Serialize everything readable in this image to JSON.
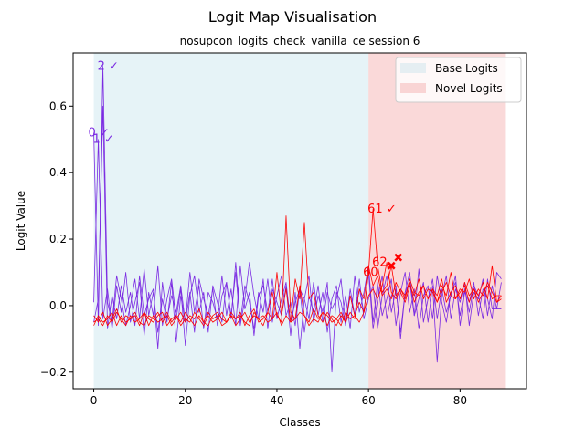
{
  "chart_data": {
    "type": "line",
    "title": "Logit Map Visualisation",
    "subtitle": "nosupcon_logits_check_vanilla_ce session 6",
    "xlabel": "Classes",
    "ylabel": "Logit Value",
    "xlim": [
      -4.5,
      94.5
    ],
    "ylim": [
      -0.25,
      0.76
    ],
    "xticks": [
      0,
      20,
      40,
      60,
      80
    ],
    "yticks": [
      -0.2,
      0.0,
      0.2,
      0.4,
      0.6
    ],
    "ytick_labels": [
      "−0.2",
      "0.0",
      "0.2",
      "0.4",
      "0.6"
    ],
    "grid": false,
    "legend_position": "top-right",
    "regions": [
      {
        "name": "Base Logits",
        "x_start": 0,
        "x_end": 60,
        "color": "#add8e6"
      },
      {
        "name": "Novel Logits",
        "x_start": 60,
        "x_end": 90,
        "color": "#f08080"
      }
    ],
    "colors": {
      "base_series": "#7b2be2",
      "novel_series": "#ff0000"
    },
    "annotations": [
      {
        "text": "2 ✓",
        "x": 2,
        "y": 0.72,
        "color": "#7b2be2"
      },
      {
        "text": "0 ✓",
        "x": 0,
        "y": 0.52,
        "color": "#7b2be2"
      },
      {
        "text": "1 ✓",
        "x": 1,
        "y": 0.5,
        "color": "#7b2be2"
      },
      {
        "text": "61 ✓",
        "x": 61,
        "y": 0.29,
        "color": "#ff0000"
      },
      {
        "text": "62",
        "x": 62,
        "y": 0.13,
        "color": "#ff0000"
      },
      {
        "text": "60",
        "x": 60,
        "y": 0.1,
        "color": "#ff0000"
      }
    ],
    "markers": [
      {
        "x": 65,
        "y": 0.12,
        "symbol": "x",
        "color": "#ff0000"
      },
      {
        "x": 66.5,
        "y": 0.145,
        "symbol": "x",
        "color": "#ff0000"
      }
    ],
    "series": [
      {
        "group": "base",
        "color": "#7b2be2",
        "values": [
          0.52,
          -0.06,
          0.72,
          0.01,
          -0.05,
          0.09,
          0.02,
          -0.06,
          0.0,
          0.08,
          -0.04,
          0.11,
          -0.03,
          0.04,
          -0.08,
          0.02,
          -0.05,
          0.07,
          -0.11,
          0.03,
          -0.05,
          0.1,
          -0.02,
          0.06,
          -0.07,
          0.04,
          0.01,
          -0.04,
          0.09,
          -0.03,
          0.05,
          -0.06,
          0.12,
          -0.01,
          0.04,
          -0.09,
          0.03,
          0.06,
          -0.02,
          0.08,
          -0.04,
          0.02,
          0.07,
          -0.05,
          0.01,
          0.05,
          -0.08,
          0.03,
          -0.02,
          0.06,
          -0.05,
          0.04,
          -0.01,
          0.02,
          0.08,
          -0.06,
          0.03,
          -0.03,
          0.05,
          -0.02,
          0.1,
          -0.07,
          0.02,
          0.09,
          -0.04,
          0.03,
          0.06,
          -0.1,
          0.04,
          0.07,
          -0.03,
          0.11,
          -0.05,
          0.02,
          0.08,
          -0.04,
          0.05,
          -0.02,
          0.03,
          0.09,
          -0.06,
          0.04,
          0.01,
          0.07,
          -0.03,
          0.05,
          0.02,
          -0.04,
          0.1,
          0.08
        ]
      },
      {
        "group": "base",
        "color": "#7b2be2",
        "values": [
          0.01,
          0.5,
          -0.04,
          0.05,
          -0.07,
          0.06,
          -0.02,
          0.1,
          -0.05,
          0.01,
          0.07,
          -0.09,
          0.04,
          -0.03,
          0.12,
          -0.06,
          0.02,
          0.08,
          -0.04,
          0.05,
          -0.12,
          0.03,
          0.09,
          -0.02,
          0.04,
          -0.08,
          0.06,
          0.01,
          -0.05,
          0.07,
          -0.03,
          0.1,
          -0.06,
          0.02,
          0.13,
          0.03,
          -0.04,
          0.08,
          -0.07,
          0.05,
          0.01,
          -0.03,
          0.06,
          -0.09,
          0.04,
          -0.13,
          0.02,
          0.09,
          -0.05,
          0.03,
          -0.02,
          0.07,
          -0.2,
          0.04,
          0.01,
          -0.06,
          0.05,
          -0.03,
          0.08,
          -0.04,
          0.02,
          0.06,
          -0.07,
          0.03,
          0.09,
          -0.02,
          0.05,
          -0.08,
          0.04,
          0.1,
          -0.03,
          0.02,
          0.07,
          -0.05,
          0.06,
          -0.17,
          0.03,
          0.09,
          -0.04,
          0.05,
          0.01,
          0.07,
          -0.06,
          0.04,
          0.02,
          0.08,
          -0.03,
          0.06,
          -0.01,
          0.07
        ]
      },
      {
        "group": "base",
        "color": "#7b2be2",
        "values": [
          -0.05,
          0.02,
          0.6,
          -0.07,
          0.03,
          -0.04,
          0.06,
          -0.02,
          0.04,
          -0.06,
          0.09,
          -0.03,
          0.02,
          0.05,
          -0.13,
          0.07,
          -0.04,
          0.03,
          -0.02,
          0.06,
          -0.05,
          0.04,
          -0.08,
          0.08,
          0.02,
          -0.03,
          0.05,
          -0.06,
          0.03,
          0.07,
          -0.04,
          0.13,
          -0.05,
          0.06,
          0.01,
          -0.07,
          0.04,
          -0.02,
          0.08,
          -0.05,
          0.03,
          0.09,
          -0.03,
          0.01,
          -0.06,
          0.05,
          0.02,
          -0.04,
          0.07,
          -0.03,
          0.04,
          -0.08,
          0.02,
          0.06,
          -0.05,
          0.03,
          -0.07,
          0.09,
          -0.02,
          0.04,
          0.12,
          -0.05,
          0.07,
          -0.03,
          0.02,
          0.08,
          -0.06,
          0.04,
          0.1,
          -0.02,
          0.05,
          -0.07,
          0.03,
          0.06,
          -0.04,
          0.09,
          0.01,
          -0.05,
          0.04,
          0.07,
          -0.03,
          0.05,
          -0.02,
          0.06,
          0.03,
          -0.04,
          0.08,
          -0.01,
          -0.01,
          -0.01
        ]
      },
      {
        "group": "novel",
        "color": "#ff0000",
        "values": [
          -0.03,
          -0.05,
          -0.02,
          -0.06,
          -0.04,
          -0.01,
          -0.05,
          -0.03,
          -0.04,
          -0.02,
          -0.05,
          -0.06,
          -0.03,
          -0.04,
          -0.02,
          -0.05,
          -0.03,
          -0.06,
          -0.04,
          -0.02,
          -0.05,
          -0.03,
          -0.04,
          -0.01,
          -0.05,
          -0.06,
          -0.03,
          -0.02,
          -0.04,
          -0.05,
          -0.03,
          -0.04,
          -0.02,
          -0.06,
          -0.03,
          -0.01,
          -0.05,
          -0.04,
          -0.02,
          0.04,
          -0.03,
          -0.05,
          0.27,
          -0.02,
          -0.04,
          0.06,
          -0.03,
          -0.05,
          -0.01,
          -0.04,
          -0.02,
          -0.06,
          -0.03,
          -0.04,
          -0.02,
          -0.05,
          0.03,
          -0.03,
          0.01,
          -0.02,
          0.1,
          0.29,
          0.12,
          0.04,
          0.06,
          0.12,
          0.03,
          0.05,
          0.02,
          0.08,
          0.04,
          0.03,
          0.06,
          0.02,
          0.05,
          0.01,
          0.04,
          0.07,
          0.03,
          0.02,
          0.05,
          0.04,
          0.08,
          0.02,
          0.05,
          0.03,
          0.07,
          0.04,
          0.01,
          0.03
        ]
      },
      {
        "group": "novel",
        "color": "#ff0000",
        "values": [
          -0.05,
          -0.04,
          -0.06,
          -0.03,
          -0.05,
          -0.02,
          -0.04,
          -0.06,
          -0.03,
          -0.05,
          -0.04,
          -0.02,
          -0.06,
          -0.03,
          -0.05,
          -0.04,
          -0.02,
          -0.05,
          -0.03,
          -0.06,
          -0.04,
          -0.05,
          -0.02,
          -0.04,
          -0.06,
          -0.03,
          -0.05,
          -0.04,
          -0.02,
          -0.05,
          -0.03,
          -0.06,
          -0.04,
          -0.02,
          -0.05,
          -0.03,
          -0.04,
          -0.06,
          -0.02,
          -0.04,
          0.1,
          -0.03,
          0.05,
          -0.05,
          0.08,
          0.02,
          0.25,
          0.02,
          0.04,
          -0.03,
          -0.05,
          -0.02,
          -0.04,
          -0.06,
          -0.03,
          -0.05,
          -0.02,
          -0.04,
          0.05,
          0.02,
          0.12,
          0.06,
          0.09,
          0.03,
          0.05,
          0.02,
          0.07,
          0.04,
          0.01,
          0.06,
          0.03,
          0.08,
          0.02,
          0.05,
          0.04,
          0.01,
          0.06,
          0.03,
          0.1,
          0.02,
          0.04,
          0.06,
          0.01,
          0.05,
          0.03,
          0.07,
          0.02,
          0.12,
          0.01,
          0.02
        ]
      },
      {
        "group": "novel",
        "color": "#ff0000",
        "values": [
          -0.06,
          -0.03,
          -0.05,
          -0.04,
          -0.02,
          -0.06,
          -0.03,
          -0.05,
          -0.04,
          -0.03,
          -0.06,
          -0.02,
          -0.04,
          -0.05,
          -0.03,
          -0.02,
          -0.06,
          -0.04,
          -0.03,
          -0.05,
          -0.02,
          -0.04,
          -0.06,
          -0.03,
          -0.05,
          -0.02,
          -0.04,
          -0.03,
          -0.06,
          -0.05,
          -0.02,
          -0.04,
          -0.03,
          -0.05,
          -0.06,
          -0.02,
          -0.04,
          -0.03,
          -0.05,
          -0.04,
          -0.02,
          -0.06,
          -0.03,
          -0.05,
          -0.04,
          -0.02,
          -0.03,
          -0.06,
          -0.04,
          -0.05,
          -0.02,
          -0.03,
          -0.05,
          -0.04,
          -0.06,
          -0.02,
          -0.04,
          -0.03,
          -0.05,
          -0.02,
          0.03,
          0.05,
          0.02,
          0.06,
          0.13,
          0.04,
          0.02,
          0.05,
          0.03,
          0.07,
          0.01,
          0.04,
          0.06,
          0.02,
          0.05,
          0.03,
          0.08,
          0.01,
          0.04,
          0.06,
          0.02,
          0.07,
          0.03,
          0.05,
          0.01,
          0.04,
          0.06,
          0.02,
          0.03,
          0.03
        ]
      }
    ]
  }
}
